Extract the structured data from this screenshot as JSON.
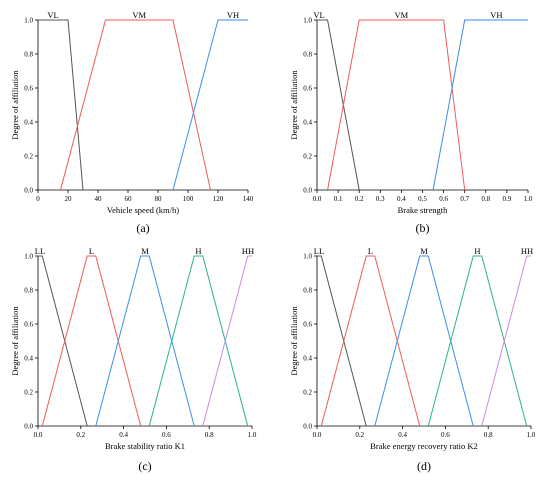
{
  "chart_data": [
    {
      "type": "line",
      "panel_label": "(a)",
      "xlabel": "Vehicle speed (km/h)",
      "ylabel": "Degree of affiliation",
      "xlim": [
        0,
        140
      ],
      "ylim": [
        0,
        1.0
      ],
      "xticks": [
        "0",
        "20",
        "40",
        "60",
        "80",
        "100",
        "120",
        "140"
      ],
      "yticks": [
        "0.0",
        "0.2",
        "0.4",
        "0.6",
        "0.8",
        "1.0"
      ],
      "grid": false,
      "series": [
        {
          "name": "VL",
          "color": "#555555",
          "x": [
            0,
            20,
            30
          ],
          "y": [
            1,
            1,
            0
          ]
        },
        {
          "name": "VM",
          "color": "#f05a5a",
          "x": [
            15,
            45,
            90,
            115
          ],
          "y": [
            0,
            1,
            1,
            0
          ]
        },
        {
          "name": "VH",
          "color": "#3b8ee8",
          "x": [
            90,
            120,
            140
          ],
          "y": [
            0,
            1,
            1
          ]
        }
      ]
    },
    {
      "type": "line",
      "panel_label": "(b)",
      "xlabel": "Brake strength",
      "ylabel": "Degree of affiliation",
      "xlim": [
        0,
        1.0
      ],
      "ylim": [
        0,
        1.0
      ],
      "xticks": [
        "0.0",
        "0.1",
        "0.2",
        "0.3",
        "0.4",
        "0.5",
        "0.6",
        "0.7",
        "0.8",
        "0.9",
        "1.0"
      ],
      "yticks": [
        "0.0",
        "0.2",
        "0.4",
        "0.6",
        "0.8",
        "1.0"
      ],
      "grid": false,
      "series": [
        {
          "name": "VL",
          "color": "#555555",
          "x": [
            0,
            0.05,
            0.2
          ],
          "y": [
            1,
            1,
            0
          ]
        },
        {
          "name": "VM",
          "color": "#f05a5a",
          "x": [
            0.05,
            0.2,
            0.6,
            0.7
          ],
          "y": [
            0,
            1,
            1,
            0
          ]
        },
        {
          "name": "VH",
          "color": "#3b8ee8",
          "x": [
            0.55,
            0.7,
            1.0
          ],
          "y": [
            0,
            1,
            1
          ]
        }
      ]
    },
    {
      "type": "line",
      "panel_label": "(c)",
      "xlabel": "Brake stability ratio K1",
      "ylabel": "Degree of affiliation",
      "xlim": [
        0,
        1.0
      ],
      "ylim": [
        0,
        1.0
      ],
      "xticks": [
        "0.0",
        "0.2",
        "0.4",
        "0.6",
        "0.8",
        "1.0"
      ],
      "yticks": [
        "0.0",
        "0.2",
        "0.4",
        "0.6",
        "0.8",
        "1.0"
      ],
      "grid": false,
      "series": [
        {
          "name": "LL",
          "color": "#555555",
          "x": [
            0,
            0.02,
            0.23
          ],
          "y": [
            1,
            1,
            0
          ]
        },
        {
          "name": "L",
          "color": "#f05a5a",
          "x": [
            0.02,
            0.23,
            0.27,
            0.48
          ],
          "y": [
            0,
            1,
            1,
            0
          ]
        },
        {
          "name": "M",
          "color": "#3b8ee8",
          "x": [
            0.27,
            0.48,
            0.52,
            0.73
          ],
          "y": [
            0,
            1,
            1,
            0
          ]
        },
        {
          "name": "H",
          "color": "#2bb38a",
          "x": [
            0.52,
            0.73,
            0.77,
            0.98
          ],
          "y": [
            0,
            1,
            1,
            0
          ]
        },
        {
          "name": "HH",
          "color": "#c98ae6",
          "x": [
            0.77,
            0.98,
            1.0
          ],
          "y": [
            0,
            1,
            1
          ]
        }
      ]
    },
    {
      "type": "line",
      "panel_label": "(d)",
      "xlabel": "Brake energy recovery ratio K2",
      "ylabel": "Degree of affiliation",
      "xlim": [
        0,
        1.0
      ],
      "ylim": [
        0,
        1.0
      ],
      "xticks": [
        "0.0",
        "0.2",
        "0.4",
        "0.6",
        "0.8",
        "1.0"
      ],
      "yticks": [
        "0.0",
        "0.2",
        "0.4",
        "0.6",
        "0.8",
        "1.0"
      ],
      "grid": false,
      "series": [
        {
          "name": "LL",
          "color": "#555555",
          "x": [
            0,
            0.02,
            0.23
          ],
          "y": [
            1,
            1,
            0
          ]
        },
        {
          "name": "L",
          "color": "#f05a5a",
          "x": [
            0.02,
            0.23,
            0.27,
            0.48
          ],
          "y": [
            0,
            1,
            1,
            0
          ]
        },
        {
          "name": "M",
          "color": "#3b8ee8",
          "x": [
            0.27,
            0.48,
            0.52,
            0.73
          ],
          "y": [
            0,
            1,
            1,
            0
          ]
        },
        {
          "name": "H",
          "color": "#2bb38a",
          "x": [
            0.52,
            0.73,
            0.77,
            0.98
          ],
          "y": [
            0,
            1,
            1,
            0
          ]
        },
        {
          "name": "HH",
          "color": "#c98ae6",
          "x": [
            0.77,
            0.98,
            1.0
          ],
          "y": [
            0,
            1,
            1
          ]
        }
      ]
    }
  ]
}
